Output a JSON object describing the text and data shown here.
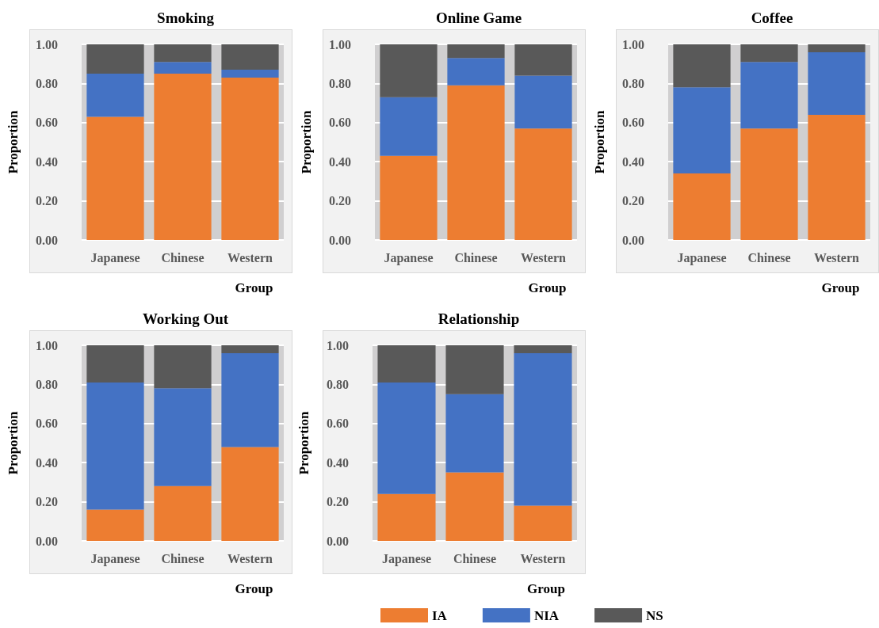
{
  "chart_data": [
    {
      "type": "bar",
      "stacked": true,
      "title": "Smoking",
      "xlabel": "Group",
      "ylabel": "Proportion",
      "categories": [
        "Japanese",
        "Chinese",
        "Western"
      ],
      "ylim": [
        0,
        1
      ],
      "yticks": [
        {
          "value": 0,
          "label": "0.00"
        },
        {
          "value": 0.2,
          "label": "0.20"
        },
        {
          "value": 0.4,
          "label": "0.40"
        },
        {
          "value": 0.6,
          "label": "0.60"
        },
        {
          "value": 0.8,
          "label": "0.80"
        },
        {
          "value": 1,
          "label": "1.00"
        }
      ],
      "grid": "y",
      "legend": false,
      "series": [
        {
          "color": "#ed7d31",
          "values": [
            0.63,
            0.85,
            0.83
          ]
        },
        {
          "color": "#4472c4",
          "values": [
            0.22,
            0.06,
            0.04
          ]
        },
        {
          "color": "#595959",
          "values": [
            0.15,
            0.09,
            0.13
          ]
        }
      ]
    },
    {
      "type": "bar",
      "stacked": true,
      "title": "Online Game",
      "xlabel": "Group",
      "ylabel": "Proportion",
      "categories": [
        "Japanese",
        "Chinese",
        "Western"
      ],
      "ylim": [
        0,
        1
      ],
      "yticks": [
        {
          "value": 0,
          "label": "0.00"
        },
        {
          "value": 0.2,
          "label": "0.20"
        },
        {
          "value": 0.4,
          "label": "0.40"
        },
        {
          "value": 0.6,
          "label": "0.60"
        },
        {
          "value": 0.8,
          "label": "0.80"
        },
        {
          "value": 1,
          "label": "1.00"
        }
      ],
      "grid": "y",
      "legend": false,
      "series": [
        {
          "color": "#ed7d31",
          "values": [
            0.43,
            0.79,
            0.57
          ]
        },
        {
          "color": "#4472c4",
          "values": [
            0.3,
            0.14,
            0.27
          ]
        },
        {
          "color": "#595959",
          "values": [
            0.27,
            0.07,
            0.16
          ]
        }
      ]
    },
    {
      "type": "bar",
      "stacked": true,
      "title": "Coffee",
      "xlabel": "Group",
      "ylabel": "Proportion",
      "categories": [
        "Japanese",
        "Chinese",
        "Western"
      ],
      "ylim": [
        0,
        1
      ],
      "yticks": [
        {
          "value": 0,
          "label": "0.00"
        },
        {
          "value": 0.2,
          "label": "0.20"
        },
        {
          "value": 0.4,
          "label": "0.40"
        },
        {
          "value": 0.6,
          "label": "0.60"
        },
        {
          "value": 0.8,
          "label": "0.80"
        },
        {
          "value": 1,
          "label": "1.00"
        }
      ],
      "grid": "y",
      "legend": false,
      "series": [
        {
          "color": "#ed7d31",
          "values": [
            0.34,
            0.57,
            0.64
          ]
        },
        {
          "color": "#4472c4",
          "values": [
            0.44,
            0.34,
            0.32
          ]
        },
        {
          "color": "#595959",
          "values": [
            0.22,
            0.09,
            0.04
          ]
        }
      ]
    },
    {
      "type": "bar",
      "stacked": true,
      "title": "Working Out",
      "xlabel": "Group",
      "ylabel": "Proportion",
      "categories": [
        "Japanese",
        "Chinese",
        "Western"
      ],
      "ylim": [
        0,
        1
      ],
      "yticks": [
        {
          "value": 0,
          "label": "0.00"
        },
        {
          "value": 0.2,
          "label": "0.20"
        },
        {
          "value": 0.4,
          "label": "0.40"
        },
        {
          "value": 0.6,
          "label": "0.60"
        },
        {
          "value": 0.8,
          "label": "0.80"
        },
        {
          "value": 1,
          "label": "1.00"
        }
      ],
      "grid": "y",
      "legend": false,
      "series": [
        {
          "color": "#ed7d31",
          "values": [
            0.16,
            0.28,
            0.48
          ]
        },
        {
          "color": "#4472c4",
          "values": [
            0.65,
            0.5,
            0.48
          ]
        },
        {
          "color": "#595959",
          "values": [
            0.19,
            0.22,
            0.04
          ]
        }
      ]
    },
    {
      "type": "bar",
      "stacked": true,
      "title": "Relationship",
      "xlabel": "Group",
      "ylabel": "Proportion",
      "categories": [
        "Japanese",
        "Chinese",
        "Western"
      ],
      "ylim": [
        0,
        1
      ],
      "yticks": [
        {
          "value": 0,
          "label": "0.00"
        },
        {
          "value": 0.2,
          "label": "0.20"
        },
        {
          "value": 0.4,
          "label": "0.40"
        },
        {
          "value": 0.6,
          "label": "0.60"
        },
        {
          "value": 0.8,
          "label": "0.80"
        },
        {
          "value": 1,
          "label": "1.00"
        }
      ],
      "grid": "y",
      "legend": "bottom",
      "series": [
        {
          "name": "IA",
          "color": "#ed7d31",
          "values": [
            0.24,
            0.35,
            0.18
          ]
        },
        {
          "name": "NIA",
          "color": "#4472c4",
          "values": [
            0.57,
            0.4,
            0.78
          ]
        },
        {
          "name": "NS",
          "color": "#595959",
          "values": [
            0.19,
            0.25,
            0.04
          ]
        }
      ]
    }
  ]
}
